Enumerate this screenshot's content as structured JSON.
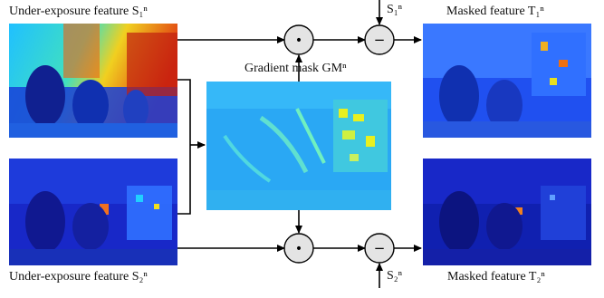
{
  "labels": {
    "under1": "Under-exposure feature S₁ⁿ",
    "under2": "Under-exposure feature S₂ⁿ",
    "masked1": "Masked feature T₁ⁿ",
    "masked2": "Masked feature T₂ⁿ",
    "gmask": "Gradient mask GMⁿ",
    "s1": "S₁ⁿ",
    "s2": "S₂ⁿ"
  },
  "operators": {
    "multiply": "•",
    "subtract": "−"
  },
  "colors": {
    "deep_blue": "#1020c8",
    "mid_blue": "#2060ff",
    "cyan": "#20c8ff",
    "yellow": "#f0f020",
    "red": "#e02010",
    "line": "#000000",
    "node_fill": "#e4e4e4"
  }
}
